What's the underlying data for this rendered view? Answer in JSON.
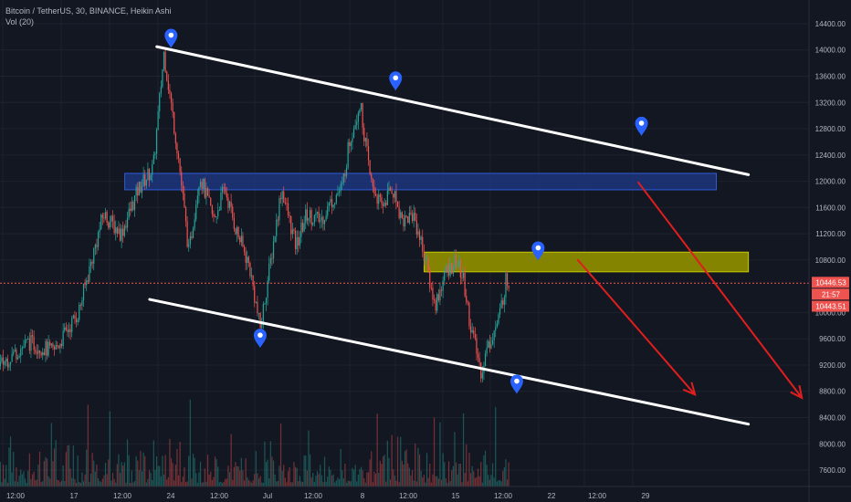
{
  "header": {
    "symbol_line": "Bitcoin / TetherUS, 30, BINANCE, Heikin Ashi",
    "volume_line": "Vol (20)"
  },
  "price_scale": {
    "ticks": [
      "14400.00",
      "14000.00",
      "13600.00",
      "13200.00",
      "12800.00",
      "12400.00",
      "12000.00",
      "11600.00",
      "11200.00",
      "10800.00",
      "10000.00",
      "9600.00",
      "9200.00",
      "8800.00",
      "8400.00",
      "8000.00",
      "7600.00"
    ]
  },
  "price_tags": [
    {
      "label": "10446.53",
      "color": "#ef5350"
    },
    {
      "label": "21:57",
      "color": "#ef5350"
    },
    {
      "label": "10443.51",
      "color": "#ef5350"
    }
  ],
  "chart_data": {
    "type": "candlestick",
    "title": "Bitcoin / TetherUS, 30, BINANCE, Heikin Ashi",
    "x_ticks": [
      "12:00",
      "17",
      "12:00",
      "24",
      "12:00",
      "Jul",
      "12:00",
      "8",
      "12:00",
      "15",
      "12:00",
      "22",
      "12:00",
      "29"
    ],
    "y_ticks": [
      7600,
      8000,
      8400,
      8800,
      9200,
      9600,
      10000,
      10800,
      11200,
      11600,
      12000,
      12400,
      12800,
      13200,
      13600,
      14000,
      14400
    ],
    "ylim": [
      7350,
      14650
    ],
    "last_price": 10446.53,
    "countdown": "21:57",
    "secondary_price": 10443.51,
    "price_path": [
      [
        0,
        8100
      ],
      [
        7,
        8300
      ],
      [
        14,
        8750
      ],
      [
        21,
        9250
      ],
      [
        28,
        9550
      ],
      [
        35,
        9400
      ],
      [
        42,
        10000
      ],
      [
        49,
        11500
      ],
      [
        54,
        11200
      ],
      [
        59,
        11900
      ],
      [
        63,
        12200
      ],
      [
        66,
        13950
      ],
      [
        70,
        12400
      ],
      [
        73,
        10900
      ],
      [
        76,
        12100
      ],
      [
        80,
        11400
      ],
      [
        83,
        11900
      ],
      [
        86,
        11300
      ],
      [
        90,
        10700
      ],
      [
        93,
        9750
      ],
      [
        96,
        10800
      ],
      [
        99,
        11900
      ],
      [
        103,
        11000
      ],
      [
        106,
        11500
      ],
      [
        110,
        11400
      ],
      [
        113,
        11700
      ],
      [
        116,
        11900
      ],
      [
        118,
        12600
      ],
      [
        121,
        13200
      ],
      [
        124,
        12000
      ],
      [
        127,
        11600
      ],
      [
        130,
        11900
      ],
      [
        133,
        11400
      ],
      [
        136,
        11500
      ],
      [
        139,
        10900
      ],
      [
        142,
        10100
      ],
      [
        145,
        10600
      ],
      [
        148,
        10800
      ],
      [
        150,
        10500
      ],
      [
        152,
        9800
      ],
      [
        155,
        9100
      ],
      [
        157,
        9500
      ],
      [
        160,
        9900
      ],
      [
        162,
        10500
      ],
      [
        163,
        10450
      ]
    ],
    "trend_lines": [
      {
        "name": "upper-channel-line",
        "from": [
          64,
          14050
        ],
        "to": [
          230,
          12100
        ],
        "color": "#ffffff"
      },
      {
        "name": "lower-channel-line",
        "from": [
          62,
          10200
        ],
        "to": [
          230,
          8300
        ],
        "color": "#ffffff"
      }
    ],
    "zones": [
      {
        "name": "blue-resistance-zone",
        "x": [
          55,
          221
        ],
        "y": [
          11870,
          12120
        ],
        "color": "#1e3a8a"
      },
      {
        "name": "yellow-zone",
        "x": [
          139,
          230
        ],
        "y": [
          10620,
          10920
        ],
        "color": "#8a8a00"
      }
    ],
    "arrows": [
      {
        "name": "short-arrow-1",
        "from": [
          182,
          10810
        ],
        "to": [
          215,
          8750
        ],
        "color": "#e01e1e"
      },
      {
        "name": "short-arrow-2",
        "from": [
          199,
          11990
        ],
        "to": [
          245,
          8700
        ],
        "color": "#e01e1e"
      }
    ],
    "markers": [
      {
        "name": "pivot-marker-1",
        "at": [
          68,
          14170
        ]
      },
      {
        "name": "pivot-marker-2",
        "at": [
          131,
          13520
        ]
      },
      {
        "name": "pivot-marker-3",
        "at": [
          200,
          12830
        ]
      },
      {
        "name": "pivot-marker-4",
        "at": [
          171,
          10930
        ]
      },
      {
        "name": "pivot-marker-5",
        "at": [
          93,
          9600
        ]
      },
      {
        "name": "pivot-marker-6",
        "at": [
          165,
          8900
        ]
      }
    ]
  },
  "colors": {
    "background": "#131722",
    "grid": "#1e222d",
    "up": "#26a69a",
    "down": "#ef5350",
    "text": "#b2b5be",
    "marker": "#2962ff",
    "last_price_line": "#ef5350"
  }
}
